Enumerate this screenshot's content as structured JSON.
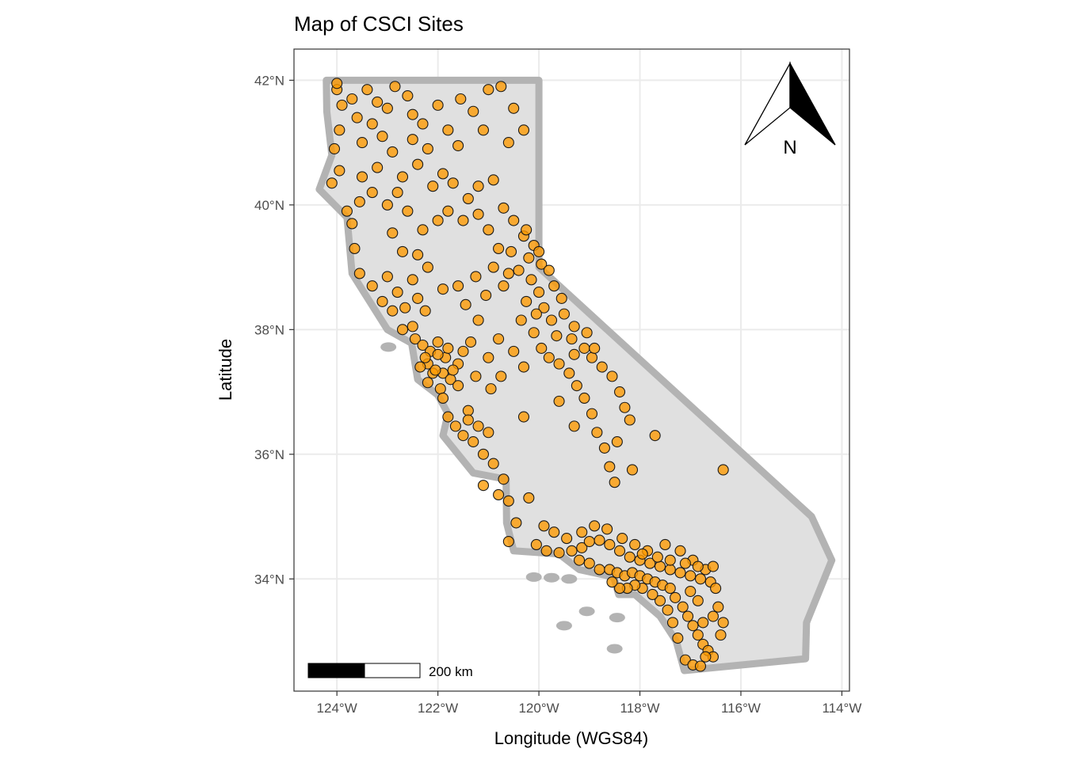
{
  "title": "Map of CSCI Sites",
  "x_axis": {
    "label": "Longitude (WGS84)",
    "ticks": [
      {
        "value": -124,
        "label": "124°W"
      },
      {
        "value": -122,
        "label": "122°W"
      },
      {
        "value": -120,
        "label": "120°W"
      },
      {
        "value": -118,
        "label": "118°W"
      },
      {
        "value": -116,
        "label": "116°W"
      },
      {
        "value": -114,
        "label": "114°W"
      }
    ]
  },
  "y_axis": {
    "label": "Latitude",
    "ticks": [
      {
        "value": 34,
        "label": "34°N"
      },
      {
        "value": 36,
        "label": "36°N"
      },
      {
        "value": 38,
        "label": "38°N"
      },
      {
        "value": 40,
        "label": "40°N"
      },
      {
        "value": 42,
        "label": "42°N"
      }
    ]
  },
  "extent": {
    "lon": [
      -124.85,
      -113.85
    ],
    "lat": [
      32.2,
      42.5
    ]
  },
  "north_arrow": {
    "label": "N",
    "placement": "top-right"
  },
  "scale_bar": {
    "label": "200 km",
    "placement": "bottom-left"
  },
  "colors": {
    "land_fill": "#e0e0e0",
    "coast_outline": "#b3b3b3",
    "site_fill": "#ff9a00",
    "site_stroke": "#1a1a1a",
    "grid": "#ebebeb",
    "panel_border": "#333333"
  },
  "chart_data": {
    "type": "scatter",
    "title": "Map of CSCI Sites",
    "xlabel": "Longitude (WGS84)",
    "ylabel": "Latitude",
    "xlim": [
      -124.85,
      -113.85
    ],
    "ylim": [
      32.2,
      42.5
    ],
    "grid": true,
    "boundary": [
      [
        -124.21,
        42.0
      ],
      [
        -120.0,
        42.0
      ],
      [
        -120.0,
        39.0
      ],
      [
        -114.6,
        35.0
      ],
      [
        -114.2,
        34.3
      ],
      [
        -114.7,
        33.3
      ],
      [
        -114.72,
        32.72
      ],
      [
        -117.12,
        32.53
      ],
      [
        -117.28,
        33.0
      ],
      [
        -117.6,
        33.4
      ],
      [
        -118.1,
        33.75
      ],
      [
        -118.42,
        33.75
      ],
      [
        -118.52,
        34.03
      ],
      [
        -119.2,
        34.15
      ],
      [
        -119.6,
        34.4
      ],
      [
        -120.5,
        34.45
      ],
      [
        -120.64,
        34.9
      ],
      [
        -120.65,
        35.6
      ],
      [
        -121.3,
        35.7
      ],
      [
        -121.9,
        36.3
      ],
      [
        -121.8,
        36.65
      ],
      [
        -122.0,
        36.95
      ],
      [
        -122.4,
        37.2
      ],
      [
        -122.52,
        37.78
      ],
      [
        -123.0,
        38.0
      ],
      [
        -123.7,
        38.9
      ],
      [
        -123.8,
        39.8
      ],
      [
        -124.35,
        40.25
      ],
      [
        -124.1,
        40.8
      ],
      [
        -124.2,
        41.5
      ],
      [
        -124.21,
        42.0
      ]
    ],
    "islands": [
      [
        -120.1,
        34.03
      ],
      [
        -119.75,
        34.02
      ],
      [
        -119.4,
        34.0
      ],
      [
        -118.45,
        33.38
      ],
      [
        -118.5,
        32.88
      ],
      [
        -119.5,
        33.25
      ],
      [
        -119.05,
        33.48
      ],
      [
        -122.98,
        37.72
      ]
    ],
    "series": [
      {
        "values": [
          [
            -124.0,
            41.85
          ],
          [
            -123.9,
            41.6
          ],
          [
            -123.95,
            41.2
          ],
          [
            -124.05,
            40.9
          ],
          [
            -123.95,
            40.55
          ],
          [
            -124.1,
            40.35
          ],
          [
            -124.0,
            41.95
          ],
          [
            -123.7,
            41.7
          ],
          [
            -123.6,
            41.4
          ],
          [
            -123.4,
            41.85
          ],
          [
            -123.2,
            41.65
          ],
          [
            -123.3,
            41.3
          ],
          [
            -123.0,
            41.55
          ],
          [
            -123.5,
            41.0
          ],
          [
            -123.1,
            41.1
          ],
          [
            -122.9,
            40.85
          ],
          [
            -123.2,
            40.6
          ],
          [
            -123.5,
            40.45
          ],
          [
            -122.85,
            41.9
          ],
          [
            -122.6,
            41.75
          ],
          [
            -122.5,
            41.45
          ],
          [
            -122.3,
            41.3
          ],
          [
            -122.5,
            41.05
          ],
          [
            -122.2,
            40.9
          ],
          [
            -122.4,
            40.65
          ],
          [
            -122.7,
            40.45
          ],
          [
            -122.0,
            41.6
          ],
          [
            -121.8,
            41.2
          ],
          [
            -121.55,
            41.7
          ],
          [
            -121.3,
            41.5
          ],
          [
            -121.0,
            41.85
          ],
          [
            -120.75,
            41.9
          ],
          [
            -120.5,
            41.55
          ],
          [
            -120.3,
            41.2
          ],
          [
            -120.6,
            41.0
          ],
          [
            -121.1,
            41.2
          ],
          [
            -121.6,
            40.95
          ],
          [
            -121.9,
            40.5
          ],
          [
            -122.1,
            40.3
          ],
          [
            -121.7,
            40.35
          ],
          [
            -121.4,
            40.1
          ],
          [
            -121.2,
            40.3
          ],
          [
            -120.9,
            40.4
          ],
          [
            -120.7,
            39.95
          ],
          [
            -120.5,
            39.75
          ],
          [
            -120.3,
            39.5
          ],
          [
            -120.55,
            39.25
          ],
          [
            -120.2,
            39.15
          ],
          [
            -120.8,
            39.3
          ],
          [
            -121.0,
            39.6
          ],
          [
            -121.2,
            39.85
          ],
          [
            -121.5,
            39.75
          ],
          [
            -121.8,
            39.9
          ],
          [
            -122.0,
            39.75
          ],
          [
            -122.3,
            39.6
          ],
          [
            -122.6,
            39.9
          ],
          [
            -122.9,
            39.55
          ],
          [
            -122.7,
            39.25
          ],
          [
            -122.4,
            39.2
          ],
          [
            -122.2,
            39.0
          ],
          [
            -122.5,
            38.8
          ],
          [
            -122.8,
            38.6
          ],
          [
            -123.0,
            38.85
          ],
          [
            -123.3,
            38.7
          ],
          [
            -123.55,
            38.9
          ],
          [
            -123.65,
            39.3
          ],
          [
            -123.7,
            39.7
          ],
          [
            -123.55,
            40.05
          ],
          [
            -123.3,
            40.2
          ],
          [
            -123.0,
            40.0
          ],
          [
            -122.8,
            40.2
          ],
          [
            -123.8,
            39.9
          ],
          [
            -123.1,
            38.45
          ],
          [
            -122.9,
            38.3
          ],
          [
            -122.65,
            38.35
          ],
          [
            -122.4,
            38.5
          ],
          [
            -122.25,
            38.3
          ],
          [
            -122.5,
            38.05
          ],
          [
            -122.7,
            38.0
          ],
          [
            -122.45,
            37.85
          ],
          [
            -122.3,
            37.75
          ],
          [
            -122.15,
            37.65
          ],
          [
            -122.0,
            37.8
          ],
          [
            -121.85,
            37.55
          ],
          [
            -122.2,
            37.45
          ],
          [
            -122.35,
            37.4
          ],
          [
            -122.1,
            37.3
          ],
          [
            -121.9,
            37.3
          ],
          [
            -121.75,
            37.2
          ],
          [
            -121.6,
            37.1
          ],
          [
            -121.95,
            37.05
          ],
          [
            -122.2,
            37.15
          ],
          [
            -122.0,
            37.6
          ],
          [
            -121.8,
            37.7
          ],
          [
            -121.6,
            37.45
          ],
          [
            -121.5,
            37.65
          ],
          [
            -122.25,
            37.55
          ],
          [
            -122.05,
            37.35
          ],
          [
            -121.7,
            37.35
          ],
          [
            -121.9,
            36.9
          ],
          [
            -121.8,
            36.6
          ],
          [
            -121.65,
            36.45
          ],
          [
            -121.5,
            36.3
          ],
          [
            -121.3,
            36.2
          ],
          [
            -121.1,
            36.0
          ],
          [
            -121.2,
            36.45
          ],
          [
            -121.4,
            36.7
          ],
          [
            -121.0,
            36.35
          ],
          [
            -120.9,
            35.85
          ],
          [
            -120.7,
            35.6
          ],
          [
            -120.8,
            35.35
          ],
          [
            -120.6,
            35.25
          ],
          [
            -120.45,
            34.9
          ],
          [
            -121.1,
            35.5
          ],
          [
            -120.6,
            34.6
          ],
          [
            -121.4,
            36.55
          ],
          [
            -121.35,
            37.8
          ],
          [
            -121.0,
            37.55
          ],
          [
            -120.8,
            37.85
          ],
          [
            -121.2,
            38.15
          ],
          [
            -121.45,
            38.4
          ],
          [
            -121.6,
            38.7
          ],
          [
            -121.9,
            38.65
          ],
          [
            -121.25,
            38.85
          ],
          [
            -121.05,
            38.55
          ],
          [
            -120.7,
            38.7
          ],
          [
            -120.9,
            39.0
          ],
          [
            -120.6,
            38.9
          ],
          [
            -120.4,
            38.95
          ],
          [
            -120.15,
            38.8
          ],
          [
            -120.0,
            38.6
          ],
          [
            -119.9,
            38.35
          ],
          [
            -119.75,
            38.15
          ],
          [
            -120.05,
            38.25
          ],
          [
            -120.25,
            38.45
          ],
          [
            -120.35,
            38.15
          ],
          [
            -120.1,
            37.95
          ],
          [
            -119.95,
            37.7
          ],
          [
            -119.8,
            37.55
          ],
          [
            -119.6,
            37.45
          ],
          [
            -119.4,
            37.3
          ],
          [
            -119.25,
            37.1
          ],
          [
            -119.1,
            36.9
          ],
          [
            -118.95,
            36.65
          ],
          [
            -118.85,
            36.35
          ],
          [
            -118.7,
            36.1
          ],
          [
            -118.6,
            35.8
          ],
          [
            -118.5,
            35.55
          ],
          [
            -119.3,
            37.6
          ],
          [
            -119.1,
            37.7
          ],
          [
            -118.95,
            37.55
          ],
          [
            -118.75,
            37.4
          ],
          [
            -118.55,
            37.25
          ],
          [
            -118.4,
            37.0
          ],
          [
            -118.3,
            36.75
          ],
          [
            -118.2,
            36.55
          ],
          [
            -118.45,
            36.2
          ],
          [
            -118.15,
            35.75
          ],
          [
            -117.7,
            36.3
          ],
          [
            -116.35,
            35.75
          ],
          [
            -119.55,
            38.5
          ],
          [
            -119.7,
            38.7
          ],
          [
            -119.95,
            39.05
          ],
          [
            -120.1,
            39.35
          ],
          [
            -120.25,
            39.6
          ],
          [
            -120.0,
            39.25
          ],
          [
            -119.8,
            38.95
          ],
          [
            -119.5,
            38.25
          ],
          [
            -119.3,
            38.05
          ],
          [
            -119.05,
            37.95
          ],
          [
            -118.9,
            37.7
          ],
          [
            -119.35,
            37.85
          ],
          [
            -119.65,
            37.9
          ],
          [
            -120.3,
            37.4
          ],
          [
            -120.5,
            37.65
          ],
          [
            -120.75,
            37.25
          ],
          [
            -121.25,
            37.25
          ],
          [
            -120.95,
            37.05
          ],
          [
            -119.6,
            36.85
          ],
          [
            -119.3,
            36.45
          ],
          [
            -120.3,
            36.6
          ],
          [
            -120.2,
            35.3
          ],
          [
            -119.9,
            34.85
          ],
          [
            -119.7,
            34.75
          ],
          [
            -120.05,
            34.55
          ],
          [
            -119.85,
            34.45
          ],
          [
            -119.6,
            34.42
          ],
          [
            -119.35,
            34.45
          ],
          [
            -119.15,
            34.5
          ],
          [
            -119.0,
            34.6
          ],
          [
            -118.8,
            34.62
          ],
          [
            -118.6,
            34.55
          ],
          [
            -118.4,
            34.45
          ],
          [
            -118.2,
            34.35
          ],
          [
            -118.0,
            34.3
          ],
          [
            -117.8,
            34.25
          ],
          [
            -117.6,
            34.2
          ],
          [
            -117.4,
            34.15
          ],
          [
            -117.2,
            34.1
          ],
          [
            -117.0,
            34.05
          ],
          [
            -116.8,
            34.0
          ],
          [
            -116.6,
            33.95
          ],
          [
            -119.2,
            34.3
          ],
          [
            -119.0,
            34.25
          ],
          [
            -118.8,
            34.15
          ],
          [
            -118.6,
            34.15
          ],
          [
            -118.45,
            34.1
          ],
          [
            -118.3,
            34.05
          ],
          [
            -118.15,
            34.1
          ],
          [
            -118.0,
            34.05
          ],
          [
            -117.85,
            34.0
          ],
          [
            -117.7,
            33.95
          ],
          [
            -117.55,
            33.9
          ],
          [
            -117.4,
            33.85
          ],
          [
            -117.3,
            33.7
          ],
          [
            -117.15,
            33.55
          ],
          [
            -117.05,
            33.4
          ],
          [
            -116.95,
            33.25
          ],
          [
            -116.85,
            33.1
          ],
          [
            -116.75,
            32.95
          ],
          [
            -116.65,
            32.85
          ],
          [
            -116.55,
            32.75
          ],
          [
            -117.1,
            32.7
          ],
          [
            -116.95,
            32.62
          ],
          [
            -116.8,
            32.6
          ],
          [
            -116.7,
            32.75
          ],
          [
            -117.25,
            33.05
          ],
          [
            -117.35,
            33.3
          ],
          [
            -117.45,
            33.5
          ],
          [
            -117.6,
            33.65
          ],
          [
            -117.75,
            33.75
          ],
          [
            -117.95,
            33.85
          ],
          [
            -118.1,
            33.9
          ],
          [
            -118.25,
            33.85
          ],
          [
            -118.4,
            33.85
          ],
          [
            -118.55,
            33.95
          ],
          [
            -117.0,
            33.8
          ],
          [
            -116.85,
            33.65
          ],
          [
            -116.5,
            33.85
          ],
          [
            -116.45,
            33.55
          ],
          [
            -116.35,
            33.3
          ],
          [
            -116.4,
            33.1
          ],
          [
            -116.55,
            33.4
          ],
          [
            -116.75,
            33.3
          ],
          [
            -117.85,
            34.45
          ],
          [
            -117.5,
            34.55
          ],
          [
            -117.2,
            34.45
          ],
          [
            -116.95,
            34.3
          ],
          [
            -116.7,
            34.15
          ],
          [
            -116.55,
            34.2
          ],
          [
            -119.45,
            34.65
          ],
          [
            -119.15,
            34.75
          ],
          [
            -118.9,
            34.85
          ],
          [
            -118.65,
            34.8
          ],
          [
            -118.35,
            34.65
          ],
          [
            -118.1,
            34.55
          ],
          [
            -117.4,
            34.3
          ],
          [
            -117.1,
            34.25
          ],
          [
            -116.85,
            34.2
          ],
          [
            -117.65,
            34.35
          ],
          [
            -117.95,
            34.4
          ]
        ]
      }
    ]
  }
}
